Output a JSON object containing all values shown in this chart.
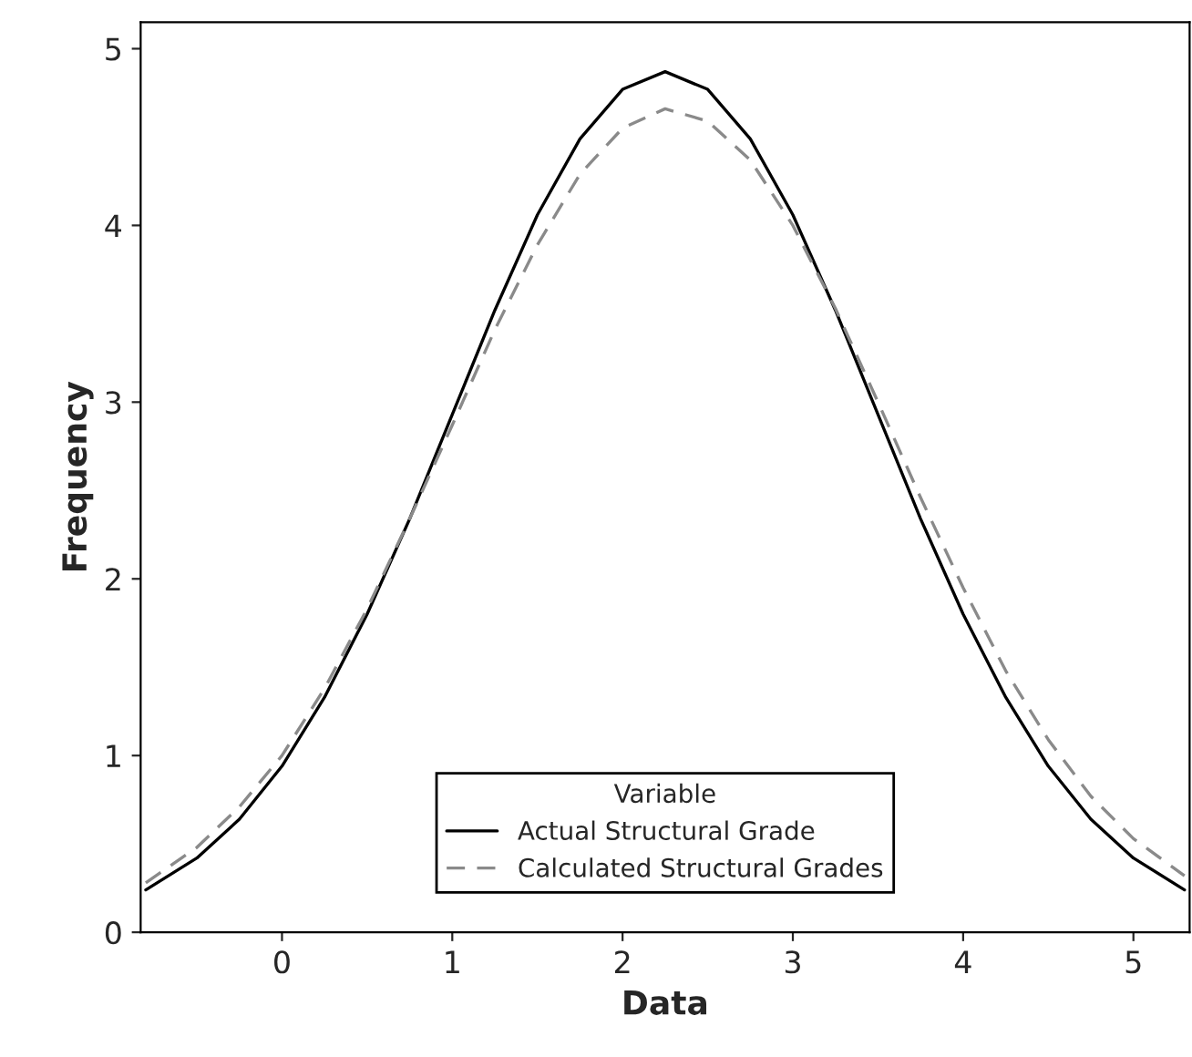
{
  "chart_data": {
    "type": "line",
    "xlabel": "Data",
    "ylabel": "Frequency",
    "legend_title": "Variable",
    "x": [
      -0.8,
      -0.5,
      -0.25,
      0,
      0.25,
      0.5,
      0.75,
      1.0,
      1.25,
      1.5,
      1.75,
      2.0,
      2.25,
      2.5,
      2.75,
      3.0,
      3.25,
      3.5,
      3.75,
      4.0,
      4.25,
      4.5,
      4.75,
      5.0,
      5.3
    ],
    "series": [
      {
        "name": "Actual Structural Grade",
        "color": "#000000",
        "line_style": "solid",
        "values": [
          0.24,
          0.42,
          0.64,
          0.94,
          1.33,
          1.8,
          2.34,
          2.93,
          3.52,
          4.06,
          4.49,
          4.77,
          4.87,
          4.77,
          4.49,
          4.06,
          3.52,
          2.93,
          2.34,
          1.8,
          1.33,
          0.94,
          0.64,
          0.42,
          0.24
        ]
      },
      {
        "name": "Calculated Structural Grades",
        "color": "#8a8a8a",
        "line_style": "dashed",
        "values": [
          0.28,
          0.48,
          0.71,
          1.0,
          1.38,
          1.83,
          2.34,
          2.87,
          3.41,
          3.89,
          4.29,
          4.55,
          4.66,
          4.59,
          4.37,
          4.0,
          3.53,
          3.0,
          2.46,
          1.95,
          1.48,
          1.09,
          0.77,
          0.53,
          0.32
        ]
      }
    ],
    "xlim": [
      -0.83,
      5.33
    ],
    "ylim": [
      0,
      5.15
    ],
    "xticks": [
      0,
      1,
      2,
      3,
      4,
      5
    ],
    "yticks": [
      0,
      1,
      2,
      3,
      4,
      5
    ],
    "grid": false,
    "legend": "bottom",
    "marker": "none"
  }
}
